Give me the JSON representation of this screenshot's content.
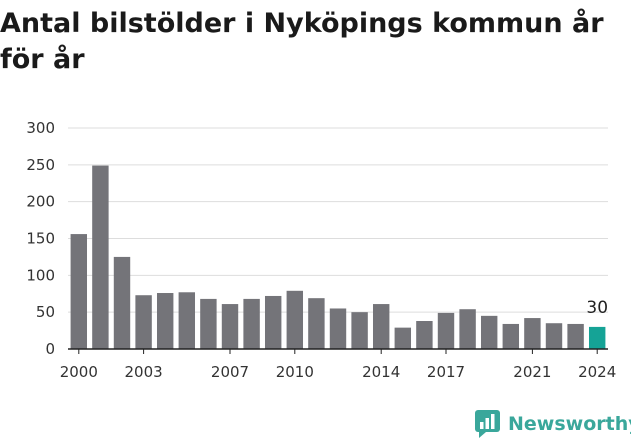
{
  "title": "Antal bilstölder i Nyköpings kommun år för år",
  "brand": {
    "name": "Newsworthy",
    "color": "#3aa79b",
    "icon": "chart-logo-icon"
  },
  "colors": {
    "bar": "#747479",
    "highlight": "#15a396",
    "grid": "#dddddd",
    "axis": "#222222"
  },
  "chart_data": {
    "type": "bar",
    "title": "Antal bilstölder i Nyköpings kommun år för år",
    "xlabel": "",
    "ylabel": "",
    "ylim": [
      0,
      300
    ],
    "yticks": [
      0,
      50,
      100,
      150,
      200,
      250,
      300
    ],
    "xtick_labels": [
      "2000",
      "2003",
      "2007",
      "2010",
      "2014",
      "2017",
      "2021",
      "2024"
    ],
    "categories": [
      "2000",
      "2001",
      "2002",
      "2003",
      "2004",
      "2005",
      "2006",
      "2007",
      "2008",
      "2009",
      "2010",
      "2011",
      "2012",
      "2013",
      "2014",
      "2015",
      "2016",
      "2017",
      "2018",
      "2019",
      "2020",
      "2021",
      "2022",
      "2023",
      "2024"
    ],
    "values": [
      156,
      249,
      125,
      73,
      76,
      77,
      68,
      61,
      68,
      72,
      79,
      69,
      55,
      50,
      61,
      29,
      38,
      49,
      54,
      45,
      34,
      42,
      35,
      34,
      30
    ],
    "highlight_category": "2024",
    "annotation": "30",
    "grid": true
  }
}
